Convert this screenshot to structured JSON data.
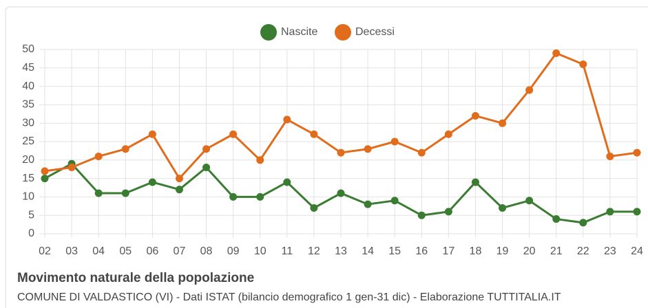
{
  "chart_data": {
    "type": "line",
    "title": "Movimento naturale della popolazione",
    "subtitle": "COMUNE DI VALDASTICO (VI) - Dati ISTAT (bilancio demografico 1 gen-31 dic) - Elaborazione TUTTITALIA.IT",
    "categories": [
      "02",
      "03",
      "04",
      "05",
      "06",
      "07",
      "08",
      "09",
      "10",
      "11",
      "12",
      "13",
      "14",
      "15",
      "16",
      "17",
      "18",
      "19",
      "20",
      "21",
      "22",
      "23",
      "24"
    ],
    "series": [
      {
        "name": "Nascite",
        "color": "#3a7d32",
        "values": [
          15,
          19,
          11,
          11,
          14,
          12,
          18,
          10,
          10,
          14,
          7,
          11,
          8,
          9,
          5,
          6,
          14,
          7,
          9,
          4,
          3,
          6,
          6
        ]
      },
      {
        "name": "Decessi",
        "color": "#e06c1c",
        "values": [
          17,
          18,
          21,
          23,
          27,
          15,
          23,
          27,
          20,
          31,
          27,
          22,
          23,
          25,
          22,
          27,
          32,
          30,
          39,
          49,
          46,
          21,
          22
        ]
      }
    ],
    "ylim": [
      0,
      50
    ],
    "yticks": [
      0,
      5,
      10,
      15,
      20,
      25,
      30,
      35,
      40,
      45,
      50
    ],
    "grid": true,
    "legend": "top"
  }
}
